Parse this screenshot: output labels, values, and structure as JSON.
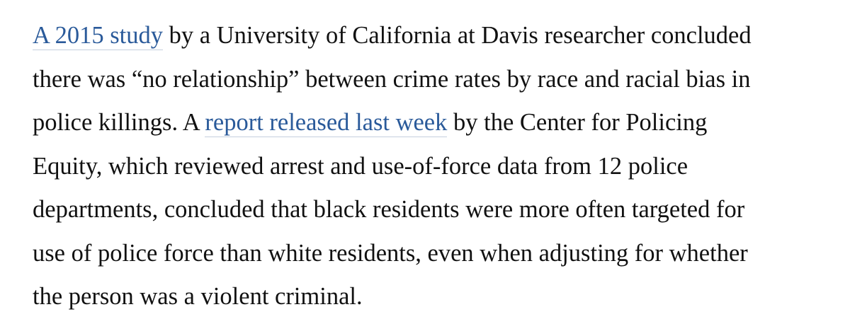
{
  "article": {
    "paragraph": {
      "line1": {
        "link": "A 2015 study",
        "text": " by a University of California at Davis researcher concluded"
      },
      "line2": {
        "text": "there was “no relationship” between crime rates by race and racial bias in"
      },
      "line3": {
        "before": "police killings. A ",
        "link": "report released last week",
        "after": " by the Center for Policing"
      },
      "line4": {
        "text": "Equity, which reviewed arrest and use-of-force data from 12 police"
      },
      "line5": {
        "text": "departments, concluded that black residents were more often targeted for"
      },
      "line6": {
        "text": "use of police force than white residents, even when adjusting for whether"
      },
      "line7": {
        "text": "the person was a violent criminal."
      }
    }
  },
  "colors": {
    "text": "#111111",
    "link": "#2a5a9a",
    "link_underline": "#c5cfdd",
    "background": "#ffffff"
  }
}
